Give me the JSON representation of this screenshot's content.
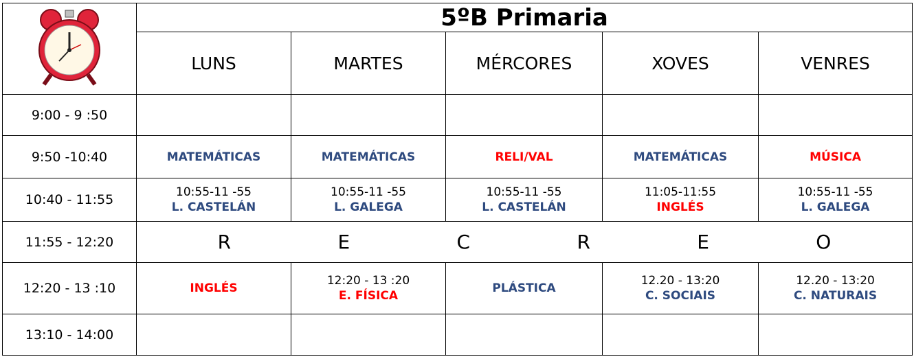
{
  "title": "5ºB Primaria",
  "days": [
    "LUNS",
    "MARTES",
    "MÉRCORES",
    "XOVES",
    "VENRES"
  ],
  "rows": [
    {
      "time": "9:00 - 9 :50",
      "cells": [
        null,
        null,
        null,
        null,
        null
      ]
    },
    {
      "time": "9:50 -10:40",
      "cells": [
        {
          "subject": "MATEMÁTICAS",
          "color": "#2e4a7f"
        },
        {
          "subject": "MATEMÁTICAS",
          "color": "#2e4a7f"
        },
        {
          "subject": "RELI/VAL",
          "color": "#ff0000"
        },
        {
          "subject": "MATEMÁTICAS",
          "color": "#2e4a7f"
        },
        {
          "subject": "MÚSICA",
          "color": "#ff0000"
        }
      ]
    },
    {
      "time": "10:40 - 11:55",
      "cells": [
        {
          "time": "10:55-11 -55",
          "subject": "L. CASTELÁN",
          "color": "#2e4a7f"
        },
        {
          "time": "10:55-11 -55",
          "subject": "L. GALEGA",
          "color": "#2e4a7f"
        },
        {
          "time": "10:55-11 -55",
          "subject": "L. CASTELÁN",
          "color": "#2e4a7f"
        },
        {
          "time": "11:05-11:55",
          "subject": "INGLÉS",
          "color": "#ff0000"
        },
        {
          "time": "10:55-11 -55",
          "subject": "L. GALEGA",
          "color": "#2e4a7f"
        }
      ]
    },
    {
      "time": "11:55 - 12:20",
      "recreo": [
        "R",
        "E",
        "C",
        "R",
        "E",
        "O"
      ]
    },
    {
      "time": "12:20 - 13 :10",
      "cells": [
        {
          "subject": "INGLÉS",
          "color": "#ff0000"
        },
        {
          "time": "12:20 - 13 :20",
          "subject": "E. FÍSICA",
          "color": "#ff0000"
        },
        {
          "subject": "PLÁSTICA",
          "color": "#2e4a7f"
        },
        {
          "time": "12.20 - 13:20",
          "subject": "C. SOCIAIS",
          "color": "#2e4a7f"
        },
        {
          "time": "12.20 - 13:20",
          "subject": "C. NATURAIS",
          "color": "#2e4a7f"
        }
      ]
    },
    {
      "time": "13:10 - 14:00",
      "cells": [
        null,
        null,
        null,
        null,
        null
      ]
    }
  ]
}
